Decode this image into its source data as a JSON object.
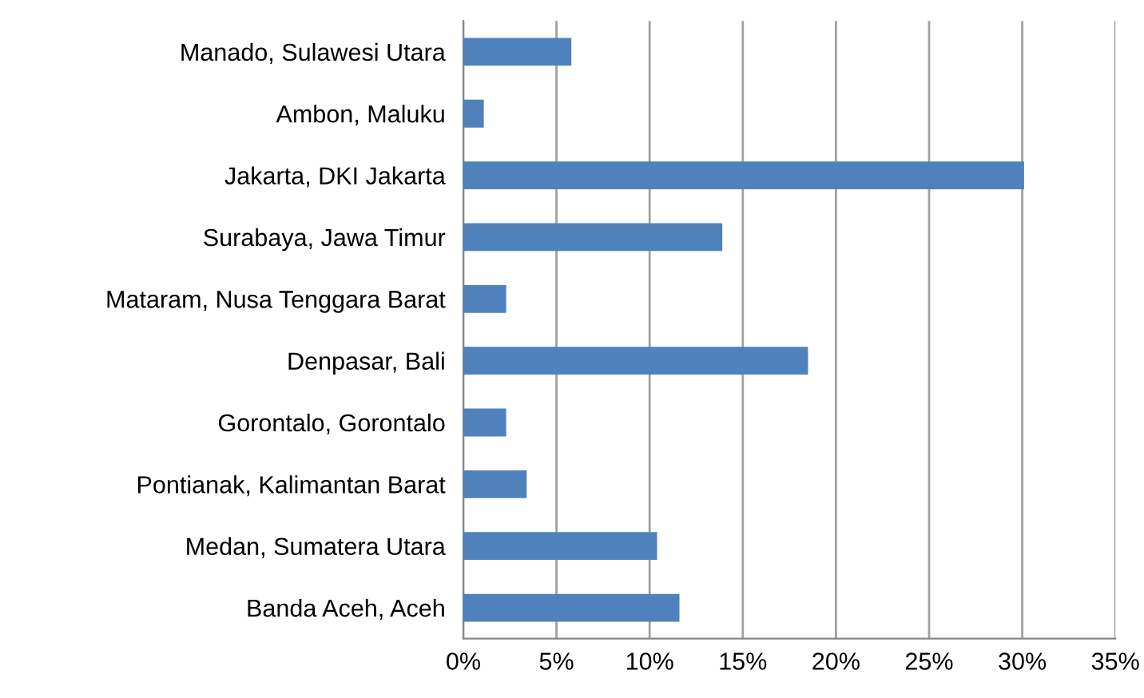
{
  "chart_data": {
    "type": "bar",
    "orientation": "horizontal",
    "categories": [
      "Manado, Sulawesi Utara",
      "Ambon, Maluku",
      "Jakarta, DKI Jakarta",
      "Surabaya, Jawa Timur",
      "Mataram, Nusa Tenggara Barat",
      "Denpasar, Bali",
      "Gorontalo, Gorontalo",
      "Pontianak, Kalimantan Barat",
      "Medan, Sumatera Utara",
      "Banda Aceh, Aceh"
    ],
    "values": [
      5.8,
      1.1,
      30.1,
      13.9,
      2.3,
      18.5,
      2.3,
      3.4,
      10.4,
      11.6
    ],
    "color": "#4f81bd",
    "xlim": [
      0,
      35
    ],
    "xticks": [
      {
        "value": 0,
        "label": "0%"
      },
      {
        "value": 5,
        "label": "5%"
      },
      {
        "value": 10,
        "label": "10%"
      },
      {
        "value": 15,
        "label": "15%"
      },
      {
        "value": 20,
        "label": "20%"
      },
      {
        "value": 25,
        "label": "25%"
      },
      {
        "value": 30,
        "label": "30%"
      },
      {
        "value": 35,
        "label": "35%"
      }
    ],
    "grid": "x",
    "legend": false
  }
}
